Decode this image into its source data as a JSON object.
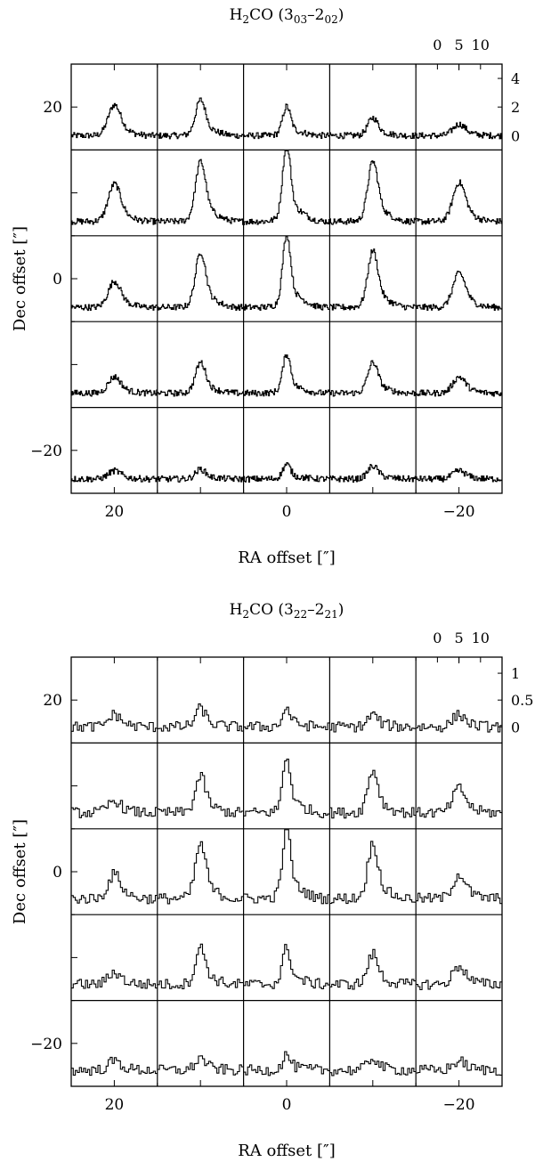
{
  "chart_data": [
    {
      "type": "line",
      "subtype": "spectral-line-map",
      "title": {
        "base": "H",
        "sub1": "2",
        "mid": "CO (3",
        "sub2": "03",
        "dash": "–2",
        "sub3": "02",
        "end": ")"
      },
      "xlabel": "RA offset  [″]",
      "ylabel": "Dec offset  [″]",
      "xticks": [
        {
          "value": 20,
          "label": "20"
        },
        {
          "value": 0,
          "label": "0"
        },
        {
          "value": -20,
          "label": "−20"
        }
      ],
      "yticks": [
        {
          "value": 20,
          "label": "20"
        },
        {
          "value": 0,
          "label": "0"
        },
        {
          "value": -20,
          "label": "−20"
        }
      ],
      "xlim": [
        25,
        -25
      ],
      "ylim": [
        -25,
        25
      ],
      "grid": {
        "ra_offsets": [
          20,
          10,
          0,
          -10,
          -20
        ],
        "dec_offsets": [
          20,
          10,
          0,
          -10,
          -20
        ]
      },
      "spectrum_axis": {
        "velocity_ticks": [
          "0",
          "5",
          "10"
        ],
        "intensity_ticks": [
          "0",
          "2",
          "4"
        ],
        "velocity_range": [
          -5,
          15
        ],
        "intensity_range": [
          -1,
          5
        ]
      },
      "peak_intensity": [
        [
          1.9,
          2.2,
          1.8,
          1.1,
          0.7
        ],
        [
          2.3,
          3.7,
          4.8,
          3.7,
          2.4
        ],
        [
          1.6,
          3.4,
          4.5,
          3.5,
          2.1
        ],
        [
          1.0,
          1.9,
          2.4,
          1.9,
          1.0
        ],
        [
          0.5,
          0.6,
          0.9,
          0.8,
          0.5
        ]
      ]
    },
    {
      "type": "line",
      "subtype": "spectral-line-map",
      "title": {
        "base": "H",
        "sub1": "2",
        "mid": "CO (3",
        "sub2": "22",
        "dash": "–2",
        "sub3": "21",
        "end": ")"
      },
      "xlabel": "RA offset  [″]",
      "ylabel": "Dec offset  [″]",
      "xticks": [
        {
          "value": 20,
          "label": "20"
        },
        {
          "value": 0,
          "label": "0"
        },
        {
          "value": -20,
          "label": "−20"
        }
      ],
      "yticks": [
        {
          "value": 20,
          "label": "20"
        },
        {
          "value": 0,
          "label": "0"
        },
        {
          "value": -20,
          "label": "−20"
        }
      ],
      "xlim": [
        25,
        -25
      ],
      "ylim": [
        -25,
        25
      ],
      "grid": {
        "ra_offsets": [
          20,
          10,
          0,
          -10,
          -20
        ],
        "dec_offsets": [
          20,
          10,
          0,
          -10,
          -20
        ]
      },
      "spectrum_axis": {
        "velocity_ticks": [
          "0",
          "5",
          "10"
        ],
        "intensity_ticks": [
          "0",
          "0.5",
          "1"
        ],
        "velocity_range": [
          -5,
          15
        ],
        "intensity_range": [
          -0.3,
          1.3
        ]
      },
      "peak_intensity": [
        [
          0.2,
          0.3,
          0.3,
          0.2,
          0.2
        ],
        [
          0.2,
          0.6,
          0.9,
          0.7,
          0.4
        ],
        [
          0.4,
          0.9,
          1.2,
          0.9,
          0.4
        ],
        [
          0.2,
          0.6,
          0.6,
          0.5,
          0.3
        ],
        [
          0.15,
          0.2,
          0.25,
          0.2,
          0.15
        ]
      ]
    }
  ]
}
